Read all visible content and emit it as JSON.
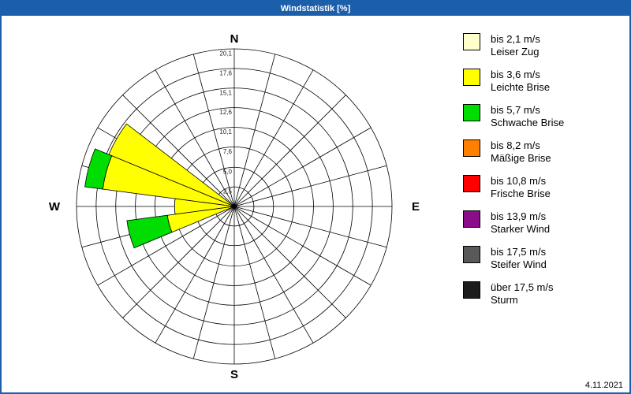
{
  "window": {
    "title": "Windstatistik [%]",
    "title_bar_color": "#1b5ea9",
    "border_color": "#1b5ea9",
    "date": "4.11.2021"
  },
  "legend": {
    "items": [
      {
        "speed": "bis 2,1 m/s",
        "desc": "Leiser Zug",
        "color": "#ffffcc"
      },
      {
        "speed": "bis 3,6 m/s",
        "desc": "Leichte Brise",
        "color": "#ffff00"
      },
      {
        "speed": "bis 5,7 m/s",
        "desc": "Schwache Brise",
        "color": "#00dd00"
      },
      {
        "speed": "bis 8,2 m/s",
        "desc": "Mäßige Brise",
        "color": "#ff8000"
      },
      {
        "speed": "bis 10,8 m/s",
        "desc": "Frische Brise",
        "color": "#ff0000"
      },
      {
        "speed": "bis 13,9 m/s",
        "desc": "Starker Wind",
        "color": "#8a0d8a"
      },
      {
        "speed": "bis 17,5 m/s",
        "desc": "Steifer Wind",
        "color": "#595959"
      },
      {
        "speed": "über 17,5 m/s",
        "desc": "Sturm",
        "color": "#1c1c1c"
      }
    ]
  },
  "chart_data": {
    "type": "wind-rose",
    "title": "Windstatistik [%]",
    "unit": "%",
    "sector_count": 24,
    "max": 20.1,
    "ring_values": [
      2.5,
      5.0,
      7.6,
      10.1,
      12.6,
      15.1,
      17.6,
      20.1
    ],
    "ring_labels": [
      "2,5",
      "5,0",
      "7,6",
      "10,1",
      "12,6",
      "15,1",
      "17,6",
      "20,1"
    ],
    "compass": {
      "n": "N",
      "e": "E",
      "s": "S",
      "w": "W"
    },
    "grid_color": "#000000",
    "petals": [
      {
        "direction_deg": 300,
        "segments": [
          {
            "class": "bis 3,6 m/s",
            "color": "#ffff00",
            "from": 0,
            "to": 17.3
          }
        ]
      },
      {
        "direction_deg": 285,
        "segments": [
          {
            "class": "bis 3,6 m/s",
            "color": "#ffff00",
            "from": 0,
            "to": 16.9
          },
          {
            "class": "bis 5,7 m/s",
            "color": "#00dd00",
            "from": 16.9,
            "to": 19.2
          }
        ]
      },
      {
        "direction_deg": 270,
        "segments": [
          {
            "class": "bis 3,6 m/s",
            "color": "#ffff00",
            "from": 0,
            "to": 7.6
          }
        ]
      },
      {
        "direction_deg": 255,
        "segments": [
          {
            "class": "bis 3,6 m/s",
            "color": "#ffff00",
            "from": 0,
            "to": 8.6
          },
          {
            "class": "bis 5,7 m/s",
            "color": "#00dd00",
            "from": 8.6,
            "to": 13.8
          }
        ]
      }
    ]
  }
}
